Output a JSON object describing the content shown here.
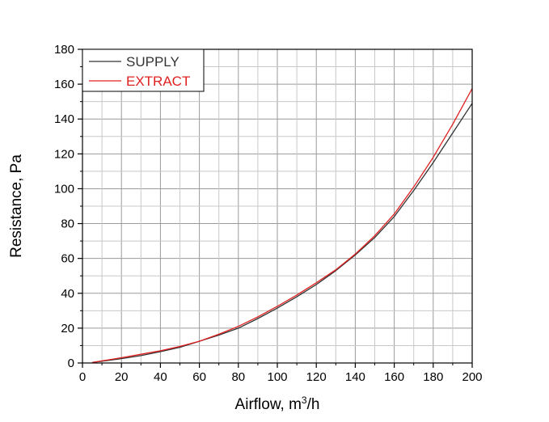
{
  "chart_data": {
    "type": "line",
    "title": "",
    "xlabel": "Airflow, m",
    "xlabel_sup": "3",
    "xlabel_suffix": "/h",
    "ylabel": "Resistance, Pa",
    "xlim": [
      0,
      200
    ],
    "ylim": [
      0,
      180
    ],
    "xticks": [
      0,
      20,
      40,
      60,
      80,
      100,
      120,
      140,
      160,
      180,
      200
    ],
    "yticks": [
      0,
      20,
      40,
      60,
      80,
      100,
      120,
      140,
      160,
      180
    ],
    "xtick_labels": [
      "0",
      "20",
      "40",
      "60",
      "80",
      "100",
      "120",
      "140",
      "160",
      "180",
      "200"
    ],
    "ytick_labels": [
      "0",
      "20",
      "40",
      "60",
      "80",
      "100",
      "120",
      "140",
      "160",
      "180"
    ],
    "grid": true,
    "legend_position": "top-left",
    "series": [
      {
        "name": "SUPPLY",
        "color": "#333333",
        "x": [
          5,
          10,
          20,
          30,
          40,
          50,
          60,
          70,
          80,
          90,
          100,
          110,
          120,
          130,
          140,
          150,
          160,
          170,
          180,
          190,
          200
        ],
        "y": [
          0.3,
          1,
          2.5,
          4.2,
          6.5,
          9,
          12.5,
          16,
          20,
          25.5,
          31.5,
          38,
          45,
          53,
          62,
          72,
          84,
          99,
          115,
          132,
          149
        ]
      },
      {
        "name": "EXTRACT",
        "color": "#e02020",
        "x": [
          5,
          10,
          20,
          30,
          40,
          50,
          60,
          70,
          80,
          90,
          100,
          110,
          120,
          130,
          140,
          150,
          160,
          170,
          180,
          190,
          200
        ],
        "y": [
          0.3,
          1.2,
          3,
          5,
          7,
          9.5,
          12.5,
          16.5,
          21,
          26.5,
          32.5,
          39,
          46,
          53.5,
          62.5,
          73,
          85.5,
          101,
          118,
          137,
          157.5
        ]
      }
    ]
  }
}
